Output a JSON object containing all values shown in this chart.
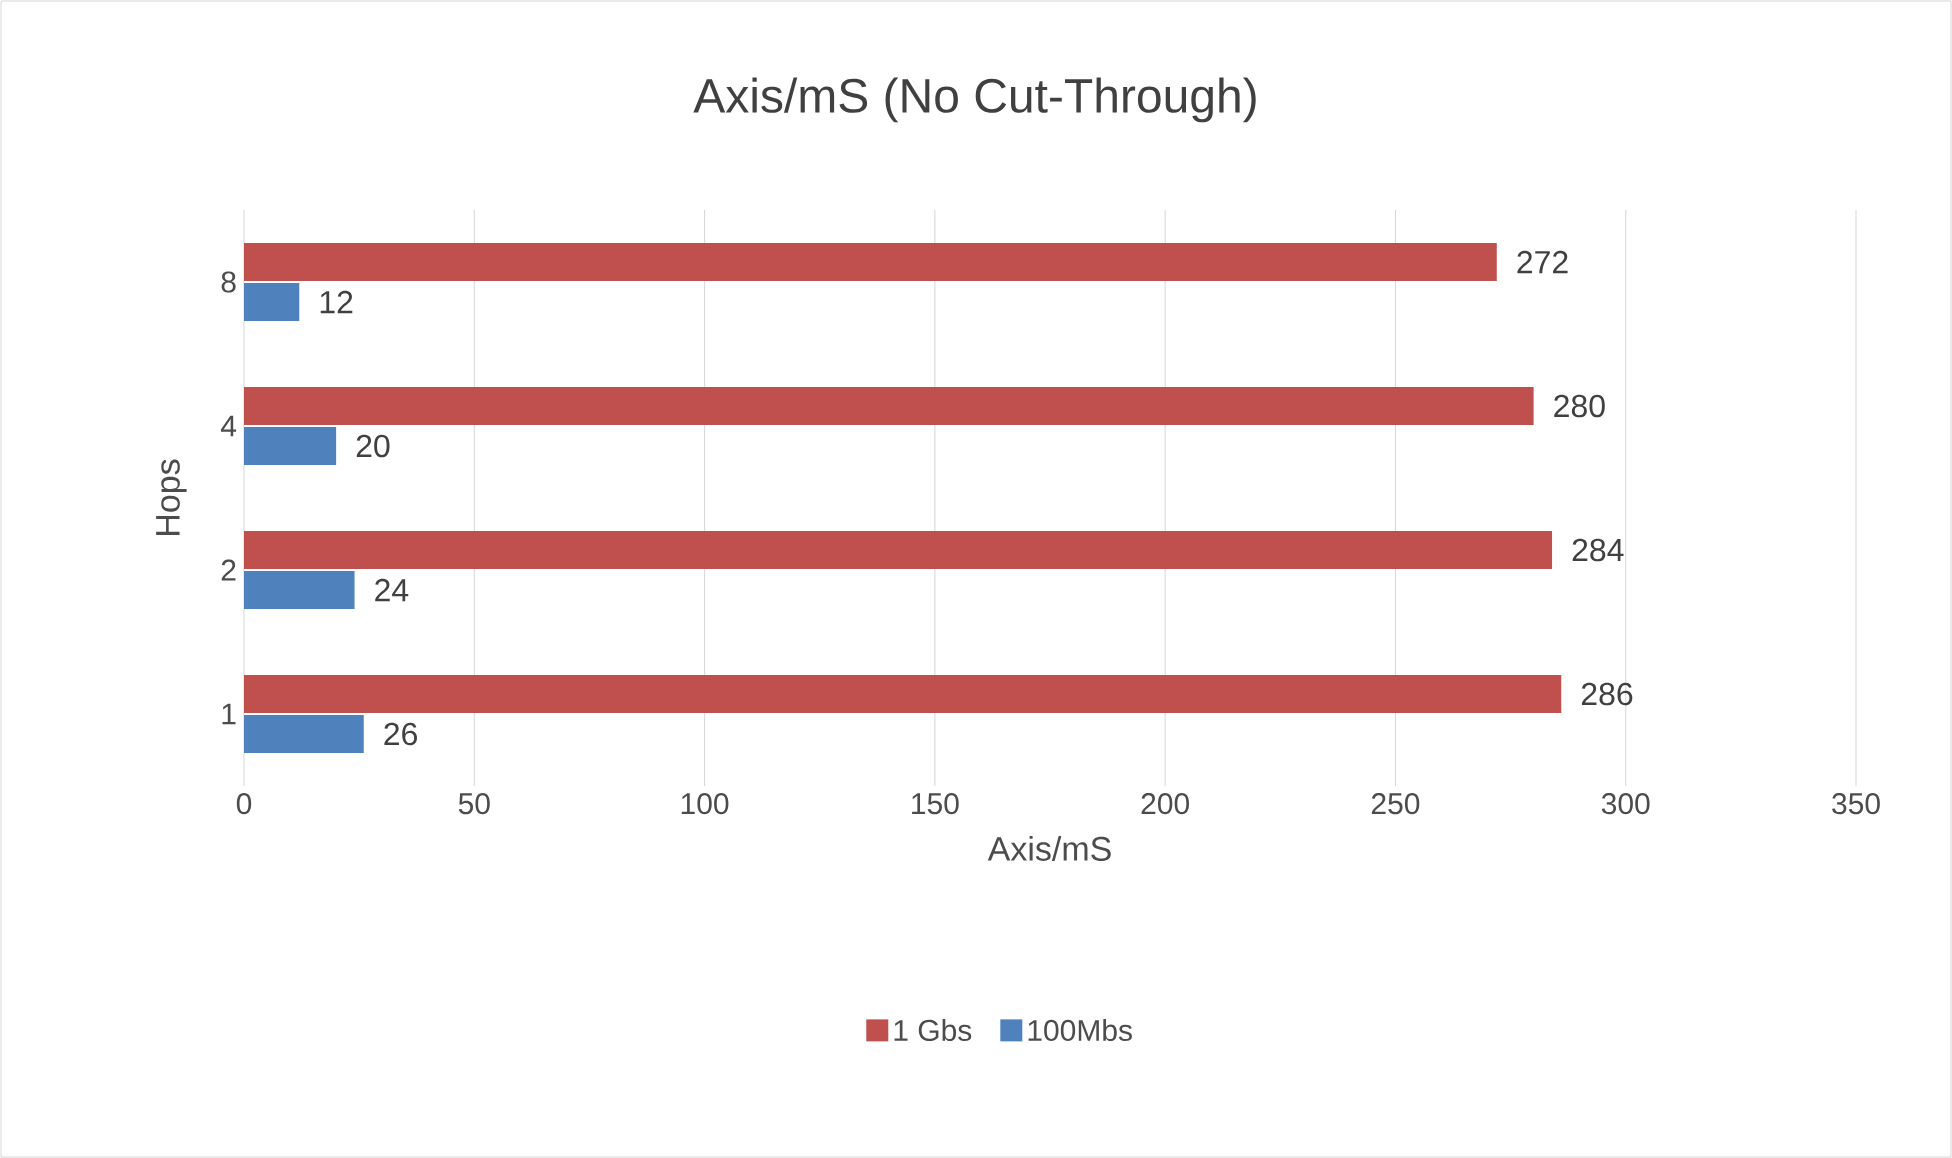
{
  "chart_data": {
    "type": "bar",
    "orientation": "horizontal",
    "title": "Axis/mS (No Cut-Through)",
    "xlabel": "Axis/mS",
    "ylabel": "Hops",
    "categories": [
      "8",
      "4",
      "2",
      "1"
    ],
    "series": [
      {
        "name": "1 Gbs",
        "color": "#c0504d",
        "values": [
          272,
          280,
          284,
          286
        ]
      },
      {
        "name": "100Mbs",
        "color": "#4f81bd",
        "values": [
          12,
          20,
          24,
          26
        ]
      }
    ],
    "xlim": [
      0,
      350
    ],
    "xticks": [
      0,
      50,
      100,
      150,
      200,
      250,
      300,
      350
    ],
    "grid": "x",
    "legend": "bottom",
    "data_labels": true
  }
}
